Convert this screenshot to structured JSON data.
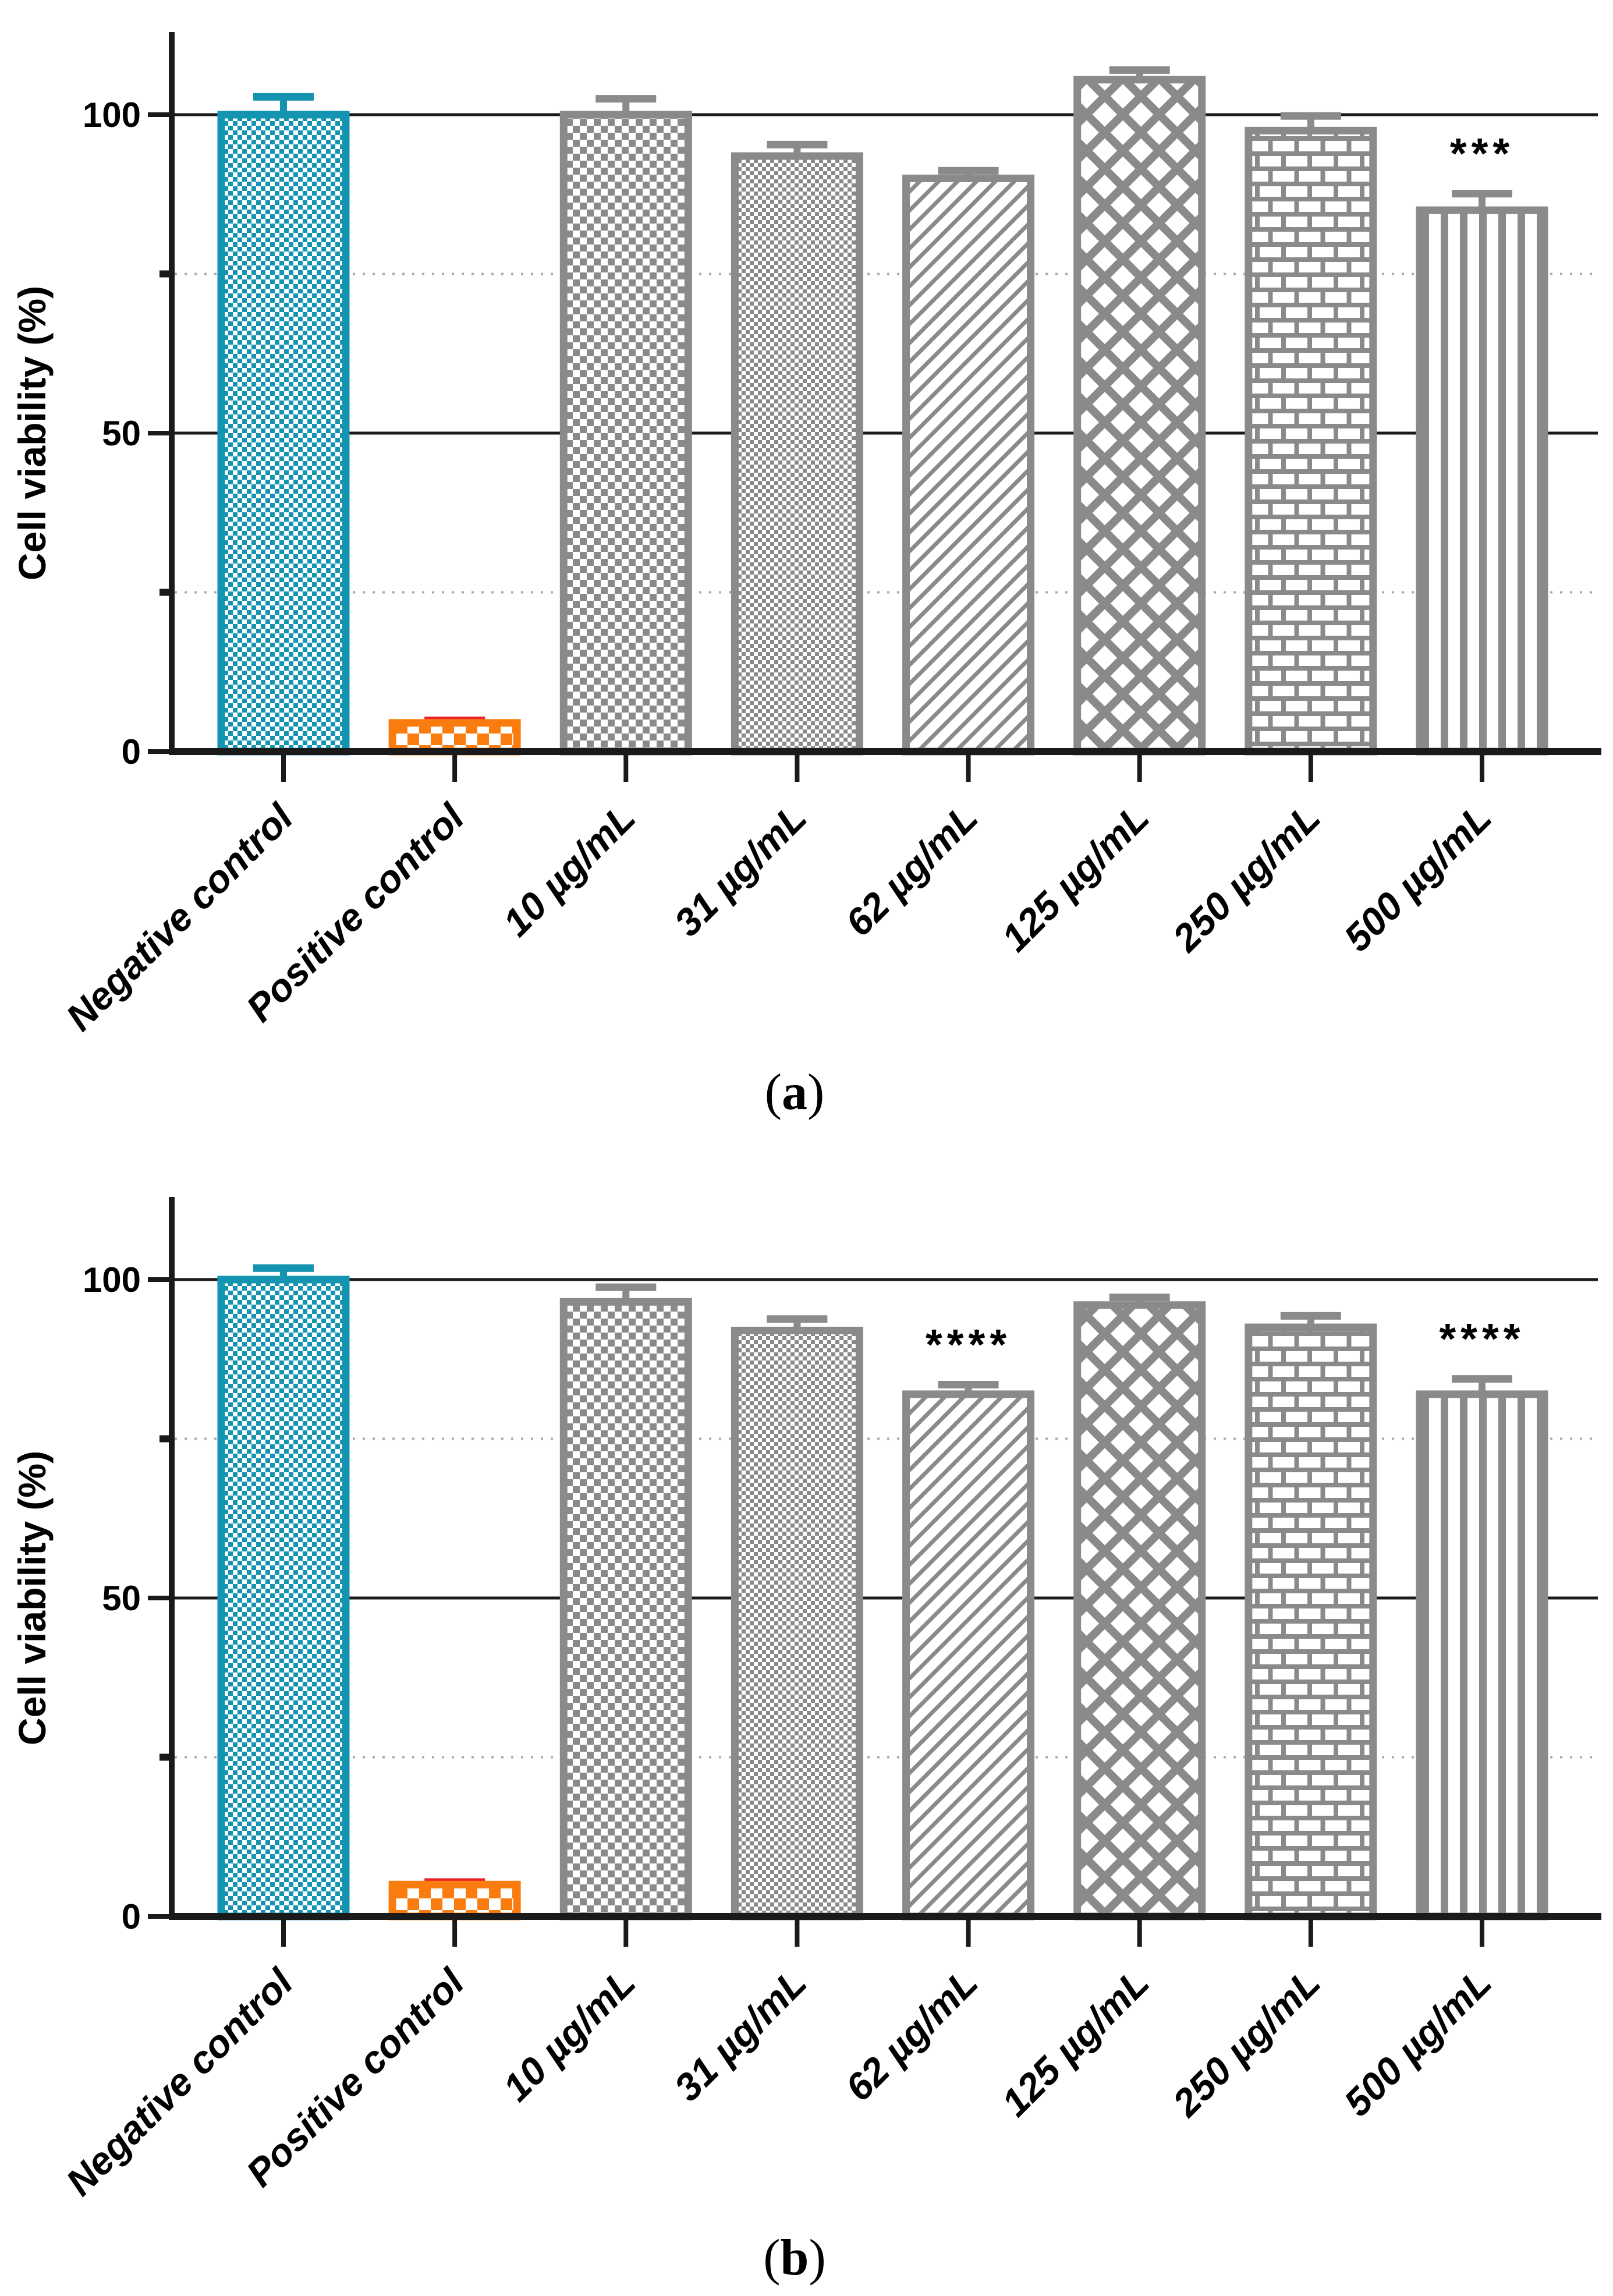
{
  "figure": {
    "captions": [
      {
        "open": "(",
        "letter": "a",
        "close": ")"
      },
      {
        "open": "(",
        "letter": "b",
        "close": ")"
      }
    ]
  },
  "styles": {
    "teal": "#1594B2",
    "orange": "#FA7C0F",
    "red": "#E8232A",
    "gray": "#8A8A8A",
    "axis_color": "#1a1a1a",
    "dotted_grid_color": "#ABABAB",
    "text_color": "#000000",
    "background": "#ffffff"
  },
  "chart_data": [
    {
      "type": "bar",
      "panel_label": "(a)",
      "title": "",
      "xlabel": "",
      "ylabel": "Cell viability (%)",
      "ylim": [
        0,
        113
      ],
      "grid": "horizontal-partial",
      "legend_position": "none",
      "yticks": [
        {
          "value": 0,
          "label": "0"
        },
        {
          "value": 50,
          "label": "50"
        },
        {
          "value": 100,
          "label": "100"
        }
      ],
      "solid_gridlines": [
        50,
        100
      ],
      "dotted_gridlines": [
        25,
        75
      ],
      "categories": [
        "Negative control",
        "Positive control",
        "10 µg/mL",
        "31 µg/mL",
        "62 µg/mL",
        "125 µg/mL",
        "250 µg/mL",
        "500 µg/mL"
      ],
      "values": [
        100,
        4.5,
        100,
        93.5,
        90,
        105.5,
        97.5,
        85
      ],
      "errors": [
        2.8,
        0.4,
        2.5,
        1.8,
        1.2,
        1.5,
        2.3,
        2.6
      ],
      "significance": [
        "",
        "",
        "",
        "",
        "",
        "",
        "",
        "***"
      ],
      "bar_styles": [
        {
          "pattern": "checker",
          "cell": 8,
          "color_key": "teal",
          "error_key": "teal"
        },
        {
          "pattern": "checker",
          "cell": 20,
          "color_key": "orange",
          "error_key": "red"
        },
        {
          "pattern": "checker",
          "cell": 12,
          "color_key": "gray",
          "error_key": "gray"
        },
        {
          "pattern": "checker",
          "cell": 7,
          "color_key": "gray",
          "error_key": "gray"
        },
        {
          "pattern": "diagonal-stripes",
          "color_key": "gray",
          "error_key": "gray"
        },
        {
          "pattern": "diamond-lattice",
          "color_key": "gray",
          "error_key": "gray"
        },
        {
          "pattern": "bricks",
          "color_key": "gray",
          "error_key": "gray"
        },
        {
          "pattern": "vertical-stripes",
          "color_key": "gray",
          "error_key": "gray"
        }
      ]
    },
    {
      "type": "bar",
      "panel_label": "(b)",
      "title": "",
      "xlabel": "",
      "ylabel": "Cell viability (%)",
      "ylim": [
        0,
        113
      ],
      "grid": "horizontal-partial",
      "legend_position": "none",
      "yticks": [
        {
          "value": 0,
          "label": "0"
        },
        {
          "value": 50,
          "label": "50"
        },
        {
          "value": 100,
          "label": "100"
        }
      ],
      "solid_gridlines": [
        50,
        100
      ],
      "dotted_gridlines": [
        25,
        75
      ],
      "categories": [
        "Negative control",
        "Positive control",
        "10 µg/mL",
        "31 µg/mL",
        "62 µg/mL",
        "125 µg/mL",
        "250 µg/mL",
        "500 µg/mL"
      ],
      "values": [
        100,
        5,
        96.5,
        92,
        82,
        96,
        92.5,
        82
      ],
      "errors": [
        1.8,
        0.4,
        2.3,
        1.8,
        1.5,
        1.2,
        1.8,
        2.4
      ],
      "significance": [
        "",
        "",
        "",
        "",
        "****",
        "",
        "",
        "****"
      ],
      "bar_styles": [
        {
          "pattern": "checker",
          "cell": 8,
          "color_key": "teal",
          "error_key": "teal"
        },
        {
          "pattern": "checker",
          "cell": 20,
          "color_key": "orange",
          "error_key": "red"
        },
        {
          "pattern": "checker",
          "cell": 12,
          "color_key": "gray",
          "error_key": "gray"
        },
        {
          "pattern": "checker",
          "cell": 7,
          "color_key": "gray",
          "error_key": "gray"
        },
        {
          "pattern": "diagonal-stripes",
          "color_key": "gray",
          "error_key": "gray"
        },
        {
          "pattern": "diamond-lattice",
          "color_key": "gray",
          "error_key": "gray"
        },
        {
          "pattern": "bricks",
          "color_key": "gray",
          "error_key": "gray"
        },
        {
          "pattern": "vertical-stripes",
          "color_key": "gray",
          "error_key": "gray"
        }
      ]
    }
  ]
}
